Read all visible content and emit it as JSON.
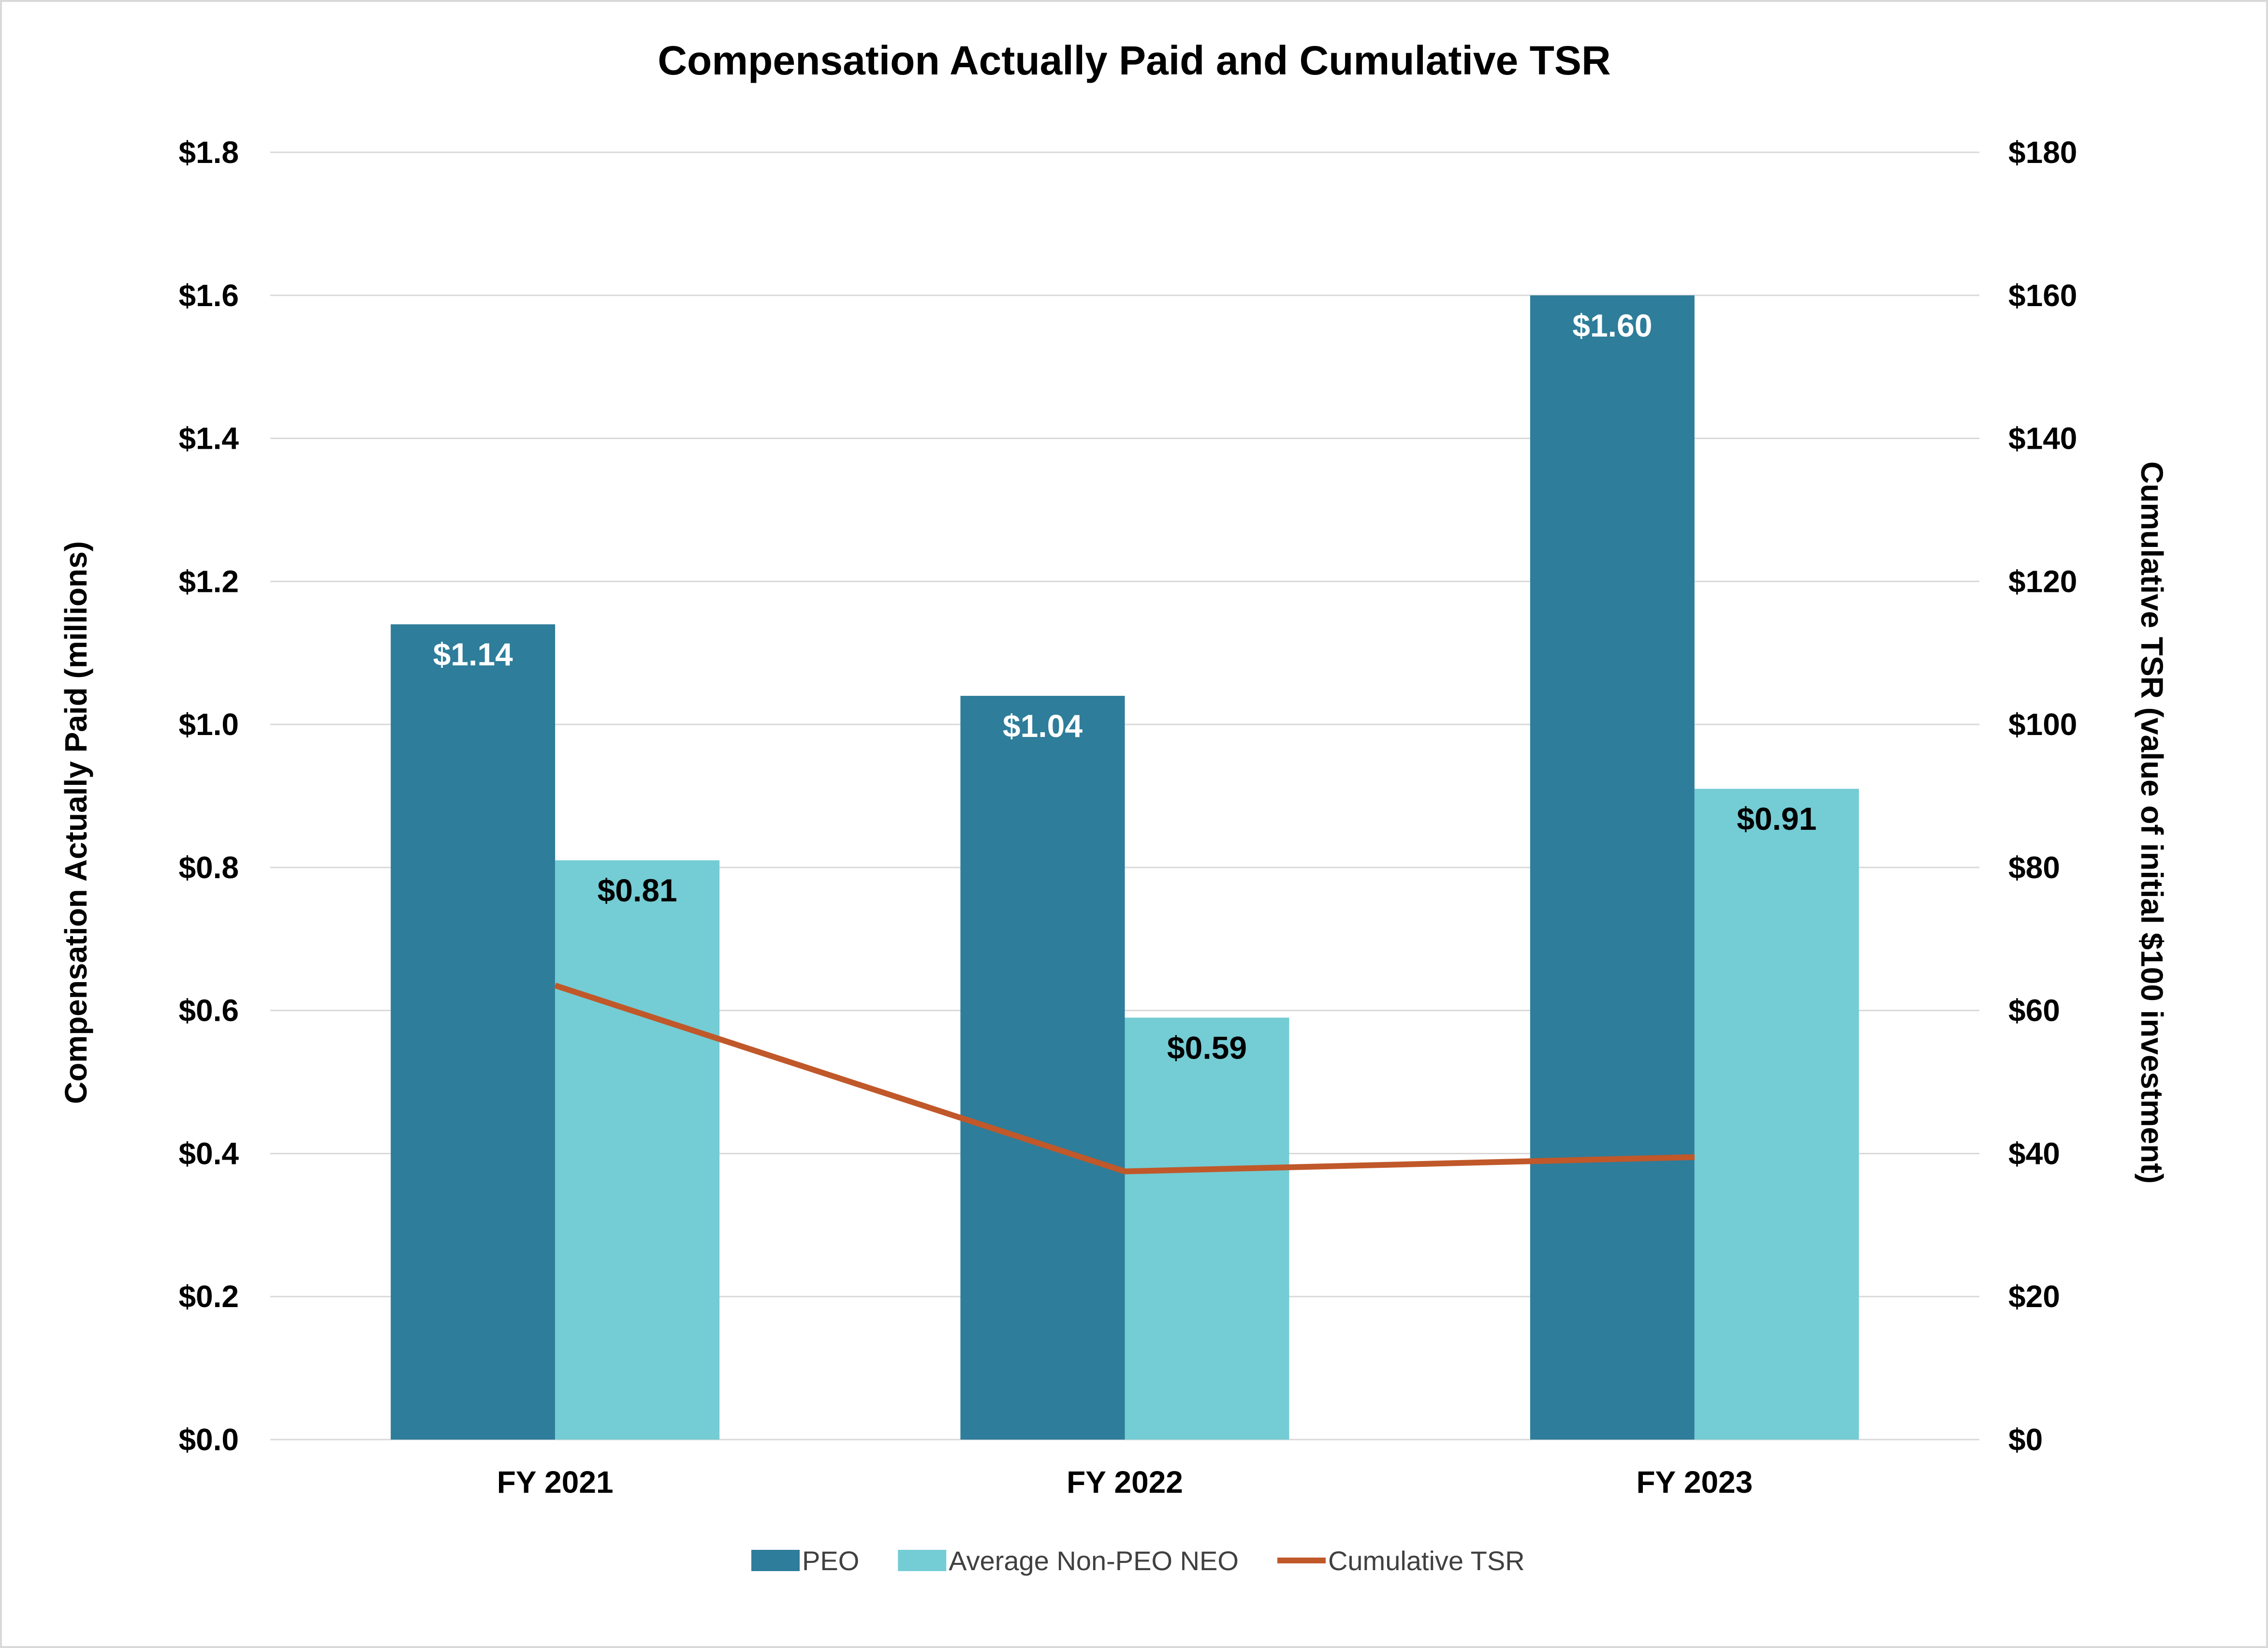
{
  "chart_data": {
    "type": "bar",
    "title": "Compensation Actually Paid and Cumulative TSR",
    "categories": [
      "FY 2021",
      "FY 2022",
      "FY 2023"
    ],
    "ylabel": "Compensation Actually Paid (millions)",
    "ylabel_right": "Cumulative TSR (value of initial $100 investment)",
    "ylim": [
      0,
      1.8
    ],
    "ylim_right": [
      0,
      180
    ],
    "yticks": [
      "$0.0",
      "$0.2",
      "$0.4",
      "$0.6",
      "$0.8",
      "$1.0",
      "$1.2",
      "$1.4",
      "$1.6",
      "$1.8"
    ],
    "yticks_right": [
      "$0",
      "$20",
      "$40",
      "$60",
      "$80",
      "$100",
      "$120",
      "$140",
      "$160",
      "$180"
    ],
    "grid": true,
    "legend_position": "bottom",
    "series": [
      {
        "name": "PEO",
        "type": "bar",
        "axis": "left",
        "color": "#2e7d9a",
        "label_color": "#ffffff",
        "values": [
          1.14,
          1.04,
          1.6
        ],
        "labels": [
          "$1.14",
          "$1.04",
          "$1.60"
        ]
      },
      {
        "name": "Average Non-PEO NEO",
        "type": "bar",
        "axis": "left",
        "color": "#74ccd4",
        "label_color": "#000000",
        "values": [
          0.81,
          0.59,
          0.91
        ],
        "labels": [
          "$0.81",
          "$0.59",
          "$0.91"
        ]
      },
      {
        "name": "Cumulative TSR",
        "type": "line",
        "axis": "right",
        "color": "#c0582a",
        "values": [
          63.5,
          37.5,
          39.5
        ]
      }
    ]
  }
}
